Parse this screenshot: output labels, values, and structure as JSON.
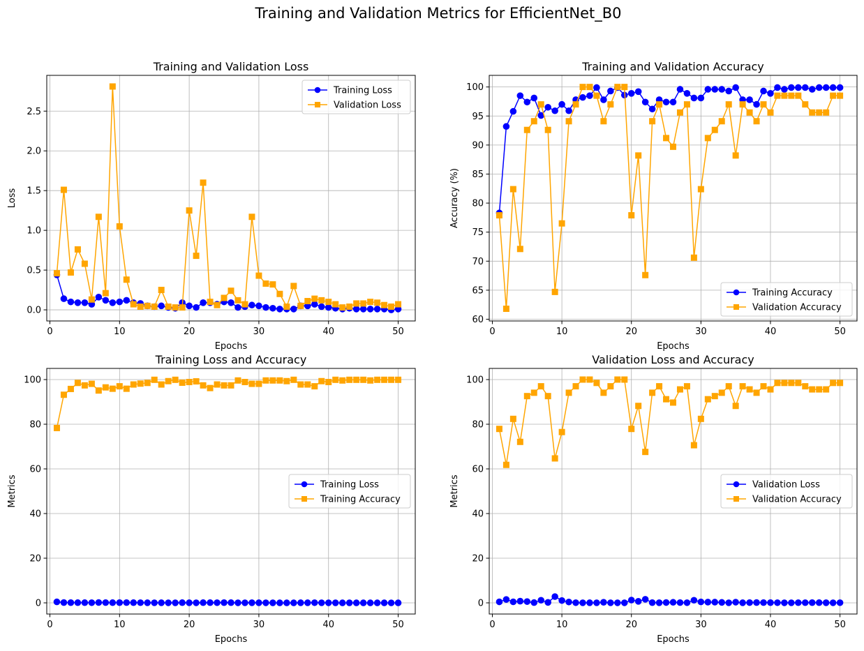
{
  "figure": {
    "suptitle": "Training and Validation Metrics for EfficientNet_B0"
  },
  "colors": {
    "blue": "#0000ff",
    "orange": "#ffa500",
    "grid": "#b0b0b0",
    "axes": "#000000"
  },
  "chart_data": [
    {
      "id": "loss",
      "type": "line",
      "title": "Training and Validation Loss",
      "xlabel": "Epochs",
      "ylabel": "Loss",
      "xlim": [
        -0.45,
        52.45
      ],
      "ylim": [
        -0.14,
        2.95
      ],
      "xticks": [
        0,
        10,
        20,
        30,
        40,
        50
      ],
      "yticks": [
        0.0,
        0.5,
        1.0,
        1.5,
        2.0,
        2.5
      ],
      "ytick_labels": [
        "0.0",
        "0.5",
        "1.0",
        "1.5",
        "2.0",
        "2.5"
      ],
      "grid": true,
      "legend_loc": "upper right",
      "x": [
        1,
        2,
        3,
        4,
        5,
        6,
        7,
        8,
        9,
        10,
        11,
        12,
        13,
        14,
        15,
        16,
        17,
        18,
        19,
        20,
        21,
        22,
        23,
        24,
        25,
        26,
        27,
        28,
        29,
        30,
        31,
        32,
        33,
        34,
        35,
        36,
        37,
        38,
        39,
        40,
        41,
        42,
        43,
        44,
        45,
        46,
        47,
        48,
        49,
        50
      ],
      "series": [
        {
          "name": "Training Loss",
          "color": "#0000ff",
          "marker": "o",
          "values": [
            0.44,
            0.14,
            0.1,
            0.09,
            0.09,
            0.07,
            0.16,
            0.12,
            0.09,
            0.1,
            0.12,
            0.09,
            0.08,
            0.05,
            0.04,
            0.05,
            0.03,
            0.02,
            0.09,
            0.05,
            0.03,
            0.09,
            0.09,
            0.07,
            0.1,
            0.09,
            0.03,
            0.04,
            0.06,
            0.05,
            0.03,
            0.02,
            0.01,
            0.01,
            0.01,
            0.05,
            0.05,
            0.07,
            0.04,
            0.03,
            0.02,
            0.01,
            0.02,
            0.01,
            0.01,
            0.01,
            0.01,
            0.01,
            0.0,
            0.01
          ]
        },
        {
          "name": "Validation Loss",
          "color": "#ffa500",
          "marker": "s",
          "values": [
            0.46,
            1.51,
            0.47,
            0.76,
            0.58,
            0.13,
            1.17,
            0.21,
            2.81,
            1.05,
            0.38,
            0.07,
            0.04,
            0.05,
            0.04,
            0.25,
            0.04,
            0.03,
            0.03,
            1.25,
            0.68,
            1.6,
            0.1,
            0.06,
            0.15,
            0.24,
            0.12,
            0.07,
            1.17,
            0.43,
            0.33,
            0.32,
            0.2,
            0.04,
            0.3,
            0.05,
            0.11,
            0.14,
            0.12,
            0.1,
            0.07,
            0.03,
            0.04,
            0.08,
            0.08,
            0.1,
            0.09,
            0.06,
            0.04,
            0.07
          ]
        }
      ]
    },
    {
      "id": "accuracy",
      "type": "line",
      "title": "Training and Validation Accuracy",
      "xlabel": "Epochs",
      "ylabel": "Accuracy (%)",
      "xlim": [
        -0.45,
        52.45
      ],
      "ylim": [
        59.7,
        102.0
      ],
      "xticks": [
        0,
        10,
        20,
        30,
        40,
        50
      ],
      "yticks": [
        60,
        65,
        70,
        75,
        80,
        85,
        90,
        95,
        100
      ],
      "ytick_labels": [
        "60",
        "65",
        "70",
        "75",
        "80",
        "85",
        "90",
        "95",
        "100"
      ],
      "grid": true,
      "legend_loc": "lower right",
      "x": [
        1,
        2,
        3,
        4,
        5,
        6,
        7,
        8,
        9,
        10,
        11,
        12,
        13,
        14,
        15,
        16,
        17,
        18,
        19,
        20,
        21,
        22,
        23,
        24,
        25,
        26,
        27,
        28,
        29,
        30,
        31,
        32,
        33,
        34,
        35,
        36,
        37,
        38,
        39,
        40,
        41,
        42,
        43,
        44,
        45,
        46,
        47,
        48,
        49,
        50
      ],
      "series": [
        {
          "name": "Training Accuracy",
          "color": "#0000ff",
          "marker": "o",
          "values": [
            78.3,
            93.2,
            95.8,
            98.5,
            97.4,
            98.1,
            95.1,
            96.5,
            95.9,
            97.0,
            95.9,
            97.8,
            98.2,
            98.5,
            99.9,
            97.8,
            99.3,
            99.9,
            98.6,
            98.9,
            99.2,
            97.4,
            96.2,
            97.8,
            97.4,
            97.4,
            99.6,
            98.9,
            98.1,
            98.1,
            99.6,
            99.6,
            99.6,
            99.3,
            99.9,
            97.8,
            97.8,
            97.0,
            99.3,
            98.9,
            99.9,
            99.6,
            99.9,
            99.9,
            99.9,
            99.6,
            99.9,
            99.9,
            99.9,
            99.9
          ]
        },
        {
          "name": "Validation Accuracy",
          "color": "#ffa500",
          "marker": "s",
          "values": [
            77.9,
            61.8,
            82.4,
            72.1,
            92.6,
            94.1,
            97.0,
            92.6,
            64.7,
            76.5,
            94.1,
            97.0,
            100.0,
            100.0,
            98.5,
            94.1,
            97.0,
            100.0,
            100.0,
            77.9,
            88.2,
            67.6,
            94.1,
            97.0,
            91.2,
            89.7,
            95.6,
            97.0,
            70.6,
            82.4,
            91.2,
            92.6,
            94.1,
            97.0,
            88.2,
            97.0,
            95.6,
            94.1,
            97.0,
            95.6,
            98.5,
            98.5,
            98.5,
            98.5,
            97.0,
            95.6,
            95.6,
            95.6,
            98.5,
            98.5
          ]
        }
      ]
    },
    {
      "id": "train",
      "type": "line",
      "title": "Training Loss and Accuracy",
      "xlabel": "Epochs",
      "ylabel": "Metrics",
      "xlim": [
        -0.45,
        52.45
      ],
      "ylim": [
        -5.0,
        105.0
      ],
      "xticks": [
        0,
        10,
        20,
        30,
        40,
        50
      ],
      "yticks": [
        0,
        20,
        40,
        60,
        80,
        100
      ],
      "ytick_labels": [
        "0",
        "20",
        "40",
        "60",
        "80",
        "100"
      ],
      "grid": true,
      "legend_loc": "center right",
      "x": [
        1,
        2,
        3,
        4,
        5,
        6,
        7,
        8,
        9,
        10,
        11,
        12,
        13,
        14,
        15,
        16,
        17,
        18,
        19,
        20,
        21,
        22,
        23,
        24,
        25,
        26,
        27,
        28,
        29,
        30,
        31,
        32,
        33,
        34,
        35,
        36,
        37,
        38,
        39,
        40,
        41,
        42,
        43,
        44,
        45,
        46,
        47,
        48,
        49,
        50
      ],
      "series": [
        {
          "name": "Training Loss",
          "color": "#0000ff",
          "marker": "o",
          "values": [
            0.44,
            0.14,
            0.1,
            0.09,
            0.09,
            0.07,
            0.16,
            0.12,
            0.09,
            0.1,
            0.12,
            0.09,
            0.08,
            0.05,
            0.04,
            0.05,
            0.03,
            0.02,
            0.09,
            0.05,
            0.03,
            0.09,
            0.09,
            0.07,
            0.1,
            0.09,
            0.03,
            0.04,
            0.06,
            0.05,
            0.03,
            0.02,
            0.01,
            0.01,
            0.01,
            0.05,
            0.05,
            0.07,
            0.04,
            0.03,
            0.02,
            0.01,
            0.02,
            0.01,
            0.01,
            0.01,
            0.01,
            0.01,
            0.0,
            0.01
          ]
        },
        {
          "name": "Training Accuracy",
          "color": "#ffa500",
          "marker": "s",
          "values": [
            78.3,
            93.2,
            95.8,
            98.5,
            97.4,
            98.1,
            95.1,
            96.5,
            95.9,
            97.0,
            95.9,
            97.8,
            98.2,
            98.5,
            99.9,
            97.8,
            99.3,
            99.9,
            98.6,
            98.9,
            99.2,
            97.4,
            96.2,
            97.8,
            97.4,
            97.4,
            99.6,
            98.9,
            98.1,
            98.1,
            99.6,
            99.6,
            99.6,
            99.3,
            99.9,
            97.8,
            97.8,
            97.0,
            99.3,
            98.9,
            99.9,
            99.6,
            99.9,
            99.9,
            99.9,
            99.6,
            99.9,
            99.9,
            99.9,
            99.9
          ]
        }
      ]
    },
    {
      "id": "val",
      "type": "line",
      "title": "Validation Loss and Accuracy",
      "xlabel": "Epochs",
      "ylabel": "Metrics",
      "xlim": [
        -0.45,
        52.45
      ],
      "ylim": [
        -5.0,
        105.0
      ],
      "xticks": [
        0,
        10,
        20,
        30,
        40,
        50
      ],
      "yticks": [
        0,
        20,
        40,
        60,
        80,
        100
      ],
      "ytick_labels": [
        "0",
        "20",
        "40",
        "60",
        "80",
        "100"
      ],
      "grid": true,
      "legend_loc": "center right",
      "x": [
        1,
        2,
        3,
        4,
        5,
        6,
        7,
        8,
        9,
        10,
        11,
        12,
        13,
        14,
        15,
        16,
        17,
        18,
        19,
        20,
        21,
        22,
        23,
        24,
        25,
        26,
        27,
        28,
        29,
        30,
        31,
        32,
        33,
        34,
        35,
        36,
        37,
        38,
        39,
        40,
        41,
        42,
        43,
        44,
        45,
        46,
        47,
        48,
        49,
        50
      ],
      "series": [
        {
          "name": "Validation Loss",
          "color": "#0000ff",
          "marker": "o",
          "values": [
            0.46,
            1.51,
            0.47,
            0.76,
            0.58,
            0.13,
            1.17,
            0.21,
            2.81,
            1.05,
            0.38,
            0.07,
            0.04,
            0.05,
            0.04,
            0.25,
            0.04,
            0.03,
            0.03,
            1.25,
            0.68,
            1.6,
            0.1,
            0.06,
            0.15,
            0.24,
            0.12,
            0.07,
            1.17,
            0.43,
            0.33,
            0.32,
            0.2,
            0.04,
            0.3,
            0.05,
            0.11,
            0.14,
            0.12,
            0.1,
            0.07,
            0.03,
            0.04,
            0.08,
            0.08,
            0.1,
            0.09,
            0.06,
            0.04,
            0.07
          ]
        },
        {
          "name": "Validation Accuracy",
          "color": "#ffa500",
          "marker": "s",
          "values": [
            77.9,
            61.8,
            82.4,
            72.1,
            92.6,
            94.1,
            97.0,
            92.6,
            64.7,
            76.5,
            94.1,
            97.0,
            100.0,
            100.0,
            98.5,
            94.1,
            97.0,
            100.0,
            100.0,
            77.9,
            88.2,
            67.6,
            94.1,
            97.0,
            91.2,
            89.7,
            95.6,
            97.0,
            70.6,
            82.4,
            91.2,
            92.6,
            94.1,
            97.0,
            88.2,
            97.0,
            95.6,
            94.1,
            97.0,
            95.6,
            98.5,
            98.5,
            98.5,
            98.5,
            97.0,
            95.6,
            95.6,
            95.6,
            98.5,
            98.5
          ]
        }
      ]
    }
  ]
}
